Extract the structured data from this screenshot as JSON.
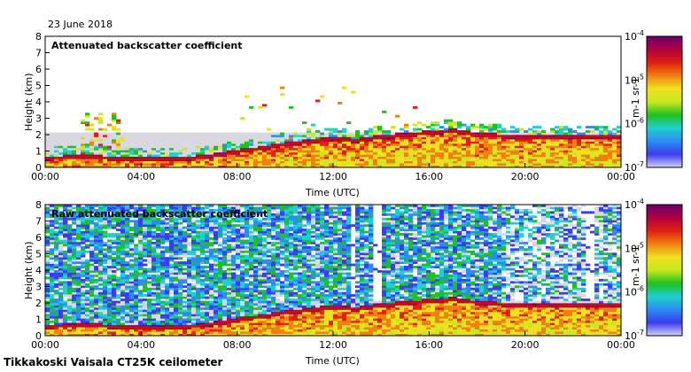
{
  "date_label": "23 June 2018",
  "footer_label": "Tikkakoski Vaisala CT25K ceilometer",
  "chart_data": [
    {
      "type": "heatmap",
      "title": "Attenuated backscatter coefficient",
      "xlabel": "Time (UTC)",
      "ylabel": "Height (km)",
      "x_ticks": [
        "00:00",
        "04:00",
        "08:00",
        "12:00",
        "16:00",
        "20:00",
        "00:00"
      ],
      "y_ticks": [
        "0",
        "1",
        "2",
        "3",
        "4",
        "5",
        "6",
        "7",
        "8"
      ],
      "xlim_hours": [
        0,
        24
      ],
      "ylim_km": [
        0,
        8
      ],
      "colorbar": {
        "scale": "log",
        "label": "m-1 sr-1",
        "range": [
          1e-07,
          0.0001
        ],
        "ticks": [
          {
            "base": "10",
            "exp": "-4",
            "value": 0.0001
          },
          {
            "base": "10",
            "exp": "-5",
            "value": 1e-05
          },
          {
            "base": "10",
            "exp": "-6",
            "value": 1e-06
          },
          {
            "base": "10",
            "exp": "-7",
            "value": 1e-07
          }
        ]
      },
      "boundary_layer_top_km": [
        [
          0,
          0.45
        ],
        [
          1,
          0.5
        ],
        [
          2,
          0.55
        ],
        [
          3,
          0.4
        ],
        [
          4,
          0.4
        ],
        [
          5,
          0.4
        ],
        [
          6,
          0.45
        ],
        [
          7,
          0.6
        ],
        [
          8,
          0.85
        ],
        [
          9,
          1.05
        ],
        [
          10,
          1.3
        ],
        [
          11,
          1.45
        ],
        [
          12,
          1.65
        ],
        [
          13,
          1.5
        ],
        [
          14,
          1.75
        ],
        [
          15,
          1.85
        ],
        [
          16,
          2.0
        ],
        [
          17,
          2.1
        ],
        [
          18,
          1.9
        ],
        [
          19,
          1.8
        ],
        [
          20,
          1.7
        ],
        [
          21,
          1.7
        ],
        [
          22,
          1.75
        ],
        [
          23,
          1.8
        ],
        [
          24,
          1.8
        ]
      ]
    },
    {
      "type": "heatmap",
      "title": "Raw attenuated backscatter coefficient",
      "xlabel": "Time (UTC)",
      "ylabel": "Height (km)",
      "x_ticks": [
        "00:00",
        "04:00",
        "08:00",
        "12:00",
        "16:00",
        "20:00",
        "00:00"
      ],
      "y_ticks": [
        "0",
        "1",
        "2",
        "3",
        "4",
        "5",
        "6",
        "7",
        "8"
      ],
      "xlim_hours": [
        0,
        24
      ],
      "ylim_km": [
        0,
        8
      ],
      "colorbar": {
        "scale": "log",
        "label": "m-1 sr-1",
        "range": [
          1e-07,
          0.0001
        ],
        "ticks": [
          {
            "base": "10",
            "exp": "-4",
            "value": 0.0001
          },
          {
            "base": "10",
            "exp": "-5",
            "value": 1e-05
          },
          {
            "base": "10",
            "exp": "-6",
            "value": 1e-06
          },
          {
            "base": "10",
            "exp": "-7",
            "value": 1e-07
          }
        ]
      },
      "boundary_layer_top_km": [
        [
          0,
          0.45
        ],
        [
          1,
          0.5
        ],
        [
          2,
          0.55
        ],
        [
          3,
          0.4
        ],
        [
          4,
          0.4
        ],
        [
          5,
          0.4
        ],
        [
          6,
          0.45
        ],
        [
          7,
          0.6
        ],
        [
          8,
          0.85
        ],
        [
          9,
          1.05
        ],
        [
          10,
          1.3
        ],
        [
          11,
          1.45
        ],
        [
          12,
          1.65
        ],
        [
          13,
          1.5
        ],
        [
          14,
          1.75
        ],
        [
          15,
          1.85
        ],
        [
          16,
          2.0
        ],
        [
          17,
          2.1
        ],
        [
          18,
          1.9
        ],
        [
          19,
          1.8
        ],
        [
          20,
          1.7
        ],
        [
          21,
          1.7
        ],
        [
          22,
          1.75
        ],
        [
          23,
          1.8
        ],
        [
          24,
          1.8
        ]
      ]
    }
  ],
  "colors": {
    "no_signal": "#d8d8e0",
    "colormap": [
      "#d0d0f4",
      "#3c3cf0",
      "#2a8ef0",
      "#20d0d0",
      "#20c020",
      "#c8e820",
      "#f0e020",
      "#f08010",
      "#e02010",
      "#b00040",
      "#6a006a"
    ]
  }
}
